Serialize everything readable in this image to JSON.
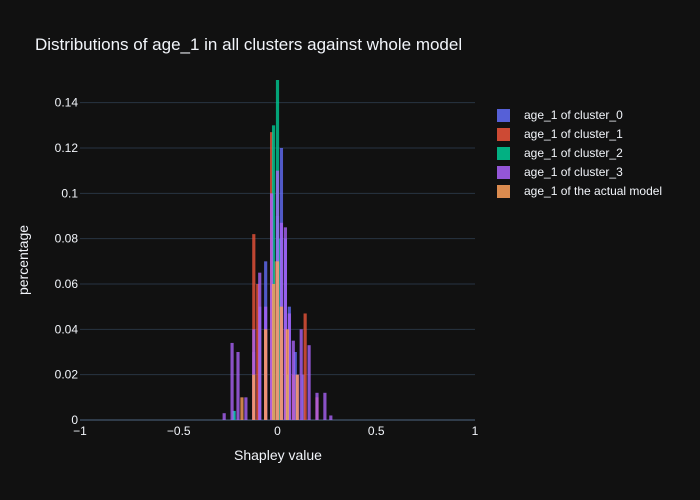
{
  "chart_data": {
    "type": "bar",
    "title": "Distributions of age_1 in all clusters against whole model",
    "xlabel": "Shapley value",
    "ylabel": "percentage",
    "xlim": [
      -1,
      1
    ],
    "ylim": [
      0,
      0.15
    ],
    "x_ticks": [
      "−1",
      "−0.5",
      "0",
      "0.5",
      "1"
    ],
    "x_tick_values": [
      -1,
      -0.5,
      0,
      0.5,
      1
    ],
    "y_ticks": [
      "0",
      "0.02",
      "0.04",
      "0.06",
      "0.08",
      "0.1",
      "0.12",
      "0.14"
    ],
    "y_tick_values": [
      0,
      0.02,
      0.04,
      0.06,
      0.08,
      0.1,
      0.12,
      0.14
    ],
    "grid": true,
    "legend_position": "right",
    "series": [
      {
        "name": "age_1 of cluster_0",
        "color": "#636efa",
        "bins": [
          [
            -0.22,
            0.004
          ],
          [
            -0.12,
            0.03
          ],
          [
            -0.09,
            0.05
          ],
          [
            -0.06,
            0.07
          ],
          [
            -0.03,
            0.06
          ],
          [
            0.0,
            0.09
          ],
          [
            0.02,
            0.12
          ],
          [
            0.04,
            0.08
          ],
          [
            0.06,
            0.05
          ],
          [
            0.09,
            0.03
          ],
          [
            0.13,
            0.02
          ]
        ]
      },
      {
        "name": "age_1 of cluster_1",
        "color": "#EF553B",
        "bins": [
          [
            -0.12,
            0.082
          ],
          [
            -0.1,
            0.06
          ],
          [
            -0.06,
            0.04
          ],
          [
            -0.03,
            0.127
          ],
          [
            -0.01,
            0.07
          ],
          [
            0.01,
            0.05
          ],
          [
            0.04,
            0.04
          ],
          [
            0.08,
            0.02
          ],
          [
            0.14,
            0.047
          ],
          [
            0.2,
            0.01
          ]
        ]
      },
      {
        "name": "age_1 of cluster_2",
        "color": "#00cc96",
        "bins": [
          [
            -0.22,
            0.004
          ],
          [
            -0.02,
            0.13
          ],
          [
            0.0,
            0.15
          ],
          [
            0.01,
            0.08
          ],
          [
            0.05,
            0.02
          ]
        ]
      },
      {
        "name": "age_1 of cluster_3",
        "color": "#ab63fa",
        "bins": [
          [
            -0.27,
            0.003
          ],
          [
            -0.23,
            0.034
          ],
          [
            -0.2,
            0.03
          ],
          [
            -0.16,
            0.01
          ],
          [
            -0.12,
            0.04
          ],
          [
            -0.09,
            0.065
          ],
          [
            -0.06,
            0.05
          ],
          [
            -0.03,
            0.1
          ],
          [
            0.0,
            0.11
          ],
          [
            0.02,
            0.087
          ],
          [
            0.04,
            0.085
          ],
          [
            0.06,
            0.047
          ],
          [
            0.08,
            0.035
          ],
          [
            0.1,
            0.02
          ],
          [
            0.12,
            0.04
          ],
          [
            0.16,
            0.033
          ],
          [
            0.2,
            0.012
          ],
          [
            0.24,
            0.012
          ],
          [
            0.27,
            0.002
          ]
        ]
      },
      {
        "name": "age_1 of the actual model",
        "color": "#FFA15A",
        "bins": [
          [
            -0.18,
            0.01
          ],
          [
            -0.12,
            0.02
          ],
          [
            -0.06,
            0.04
          ],
          [
            -0.02,
            0.06
          ],
          [
            0.0,
            0.07
          ],
          [
            0.02,
            0.05
          ],
          [
            0.05,
            0.04
          ],
          [
            0.1,
            0.02
          ]
        ]
      }
    ]
  }
}
